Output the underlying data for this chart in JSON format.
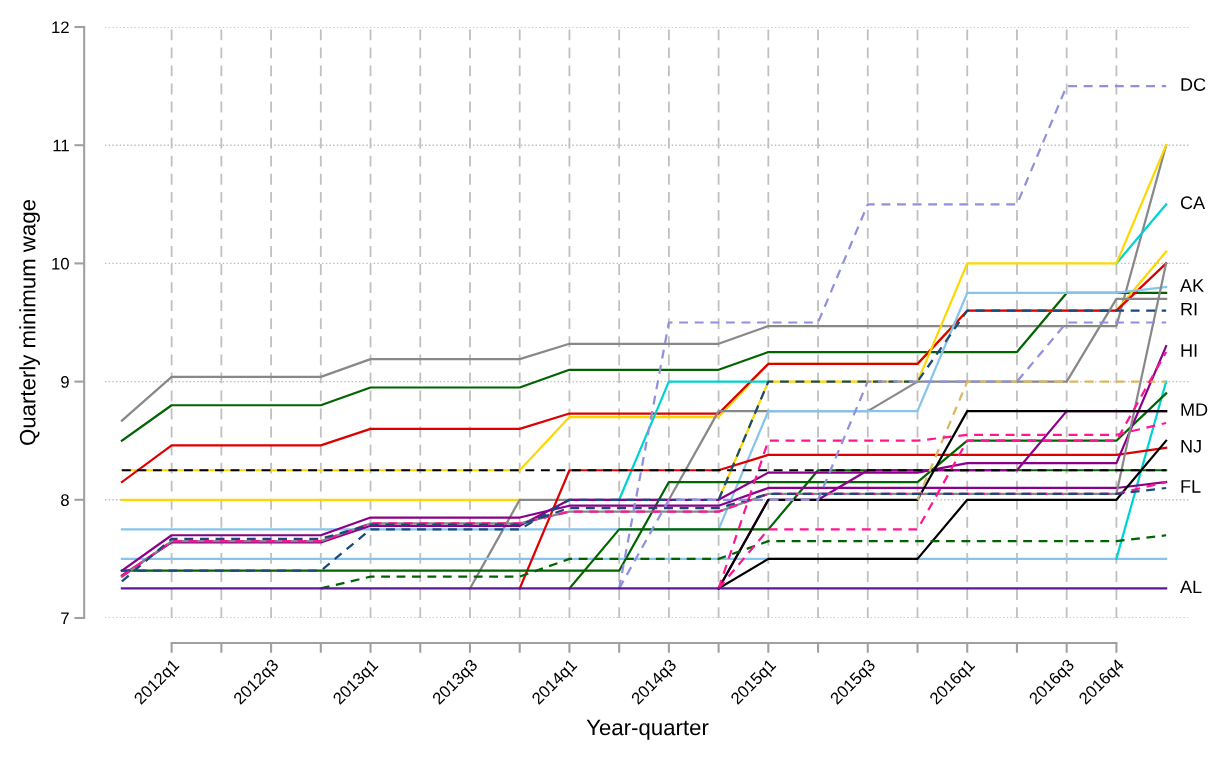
{
  "chart_data": {
    "type": "line",
    "xlabel": "Year-quarter",
    "ylabel": "Quarterly minimum wage",
    "categories": [
      null,
      "2012q1",
      null,
      "2012q3",
      null,
      "2013q1",
      null,
      "2013q3",
      null,
      "2014q1",
      null,
      "2014q3",
      null,
      "2015q1",
      null,
      "2015q3",
      null,
      "2016q1",
      null,
      "2016q3",
      "2016q4",
      null
    ],
    "ylim": [
      7,
      12
    ],
    "yticks": [
      7,
      8,
      9,
      10,
      11,
      12
    ],
    "grid": true,
    "series": [
      {
        "color": "#888888",
        "line_style": "solid",
        "values": [
          8.67,
          9.04,
          9.04,
          9.04,
          9.04,
          9.19,
          9.19,
          9.19,
          9.19,
          9.32,
          9.32,
          9.32,
          9.32,
          9.47,
          9.47,
          9.47,
          9.47,
          9.47,
          9.47,
          9.47,
          9.47,
          11.0
        ]
      },
      {
        "color": "#006400",
        "line_style": "solid",
        "values": [
          8.5,
          8.8,
          8.8,
          8.8,
          8.8,
          8.95,
          8.95,
          8.95,
          8.95,
          9.1,
          9.1,
          9.1,
          9.1,
          9.25,
          9.25,
          9.25,
          9.25,
          9.25,
          9.25,
          9.75,
          9.75,
          9.75
        ]
      },
      {
        "color": "#ffd700",
        "line_style": "solid",
        "values": [
          8.25,
          8.25,
          8.25,
          8.25,
          8.25,
          8.25,
          8.25,
          8.25,
          8.25,
          8.7,
          8.7,
          8.7,
          8.7,
          9.15,
          9.15,
          9.15,
          9.15,
          9.6,
          9.6,
          9.6,
          9.6,
          10.1
        ]
      },
      {
        "color": "#dd0000",
        "line_style": "solid",
        "values": [
          8.15,
          8.46,
          8.46,
          8.46,
          8.46,
          8.6,
          8.6,
          8.6,
          8.6,
          8.73,
          8.73,
          8.73,
          8.73,
          9.15,
          9.15,
          9.15,
          9.15,
          9.6,
          9.6,
          9.6,
          9.6,
          10.0
        ]
      },
      {
        "name": "CA",
        "color": "#00d2d2",
        "line_style": "solid",
        "values": [
          null,
          null,
          null,
          null,
          null,
          null,
          null,
          null,
          null,
          null,
          8,
          9,
          9,
          9,
          null,
          null,
          null,
          null,
          null,
          null,
          10,
          10.5
        ]
      },
      {
        "color": "#ffd700",
        "line_style": "solid",
        "values": [
          8,
          8,
          8,
          8,
          8,
          8,
          8,
          8,
          8,
          null,
          null,
          null,
          8,
          9,
          9,
          9,
          9,
          10,
          10,
          10,
          10,
          11
        ]
      },
      {
        "color": "#000000",
        "line_style": "dashed",
        "values": [
          8.25,
          8.25,
          8.25,
          8.25,
          8.25,
          8.25,
          8.25,
          8.25,
          8.25,
          8.25,
          8.25,
          8.25,
          8.25,
          8.25,
          8.25,
          8.25,
          8.25,
          8.25,
          8.25,
          8.25,
          8.25,
          8.25
        ]
      },
      {
        "color": "#d8b860",
        "line_style": "dashed",
        "values": [
          null,
          null,
          null,
          null,
          null,
          null,
          null,
          null,
          null,
          null,
          null,
          null,
          null,
          null,
          null,
          null,
          8,
          9,
          9,
          9,
          9,
          9
        ]
      },
      {
        "color": "#888888",
        "line_style": "solid",
        "values": [
          null,
          null,
          null,
          null,
          null,
          null,
          null,
          7.25,
          8,
          8,
          8,
          8,
          8.75,
          8.75,
          8.75,
          8.75,
          9,
          9,
          9,
          9,
          9.7,
          9.7
        ]
      },
      {
        "name": "RI",
        "color": "#1a4a7a",
        "line_style": "dashed",
        "values": [
          7.4,
          7.4,
          7.4,
          7.4,
          7.4,
          7.75,
          7.75,
          7.75,
          7.75,
          8,
          8,
          8,
          8,
          9,
          9,
          9,
          9,
          9.6,
          9.6,
          9.6,
          9.6,
          9.6
        ]
      },
      {
        "name": "AK",
        "color": "#87c4ec",
        "line_style": "solid",
        "values": [
          7.75,
          7.75,
          7.75,
          7.75,
          7.75,
          7.75,
          7.75,
          7.75,
          7.75,
          7.75,
          7.75,
          7.75,
          7.75,
          8.75,
          8.75,
          8.75,
          8.75,
          9.75,
          9.75,
          9.75,
          9.75,
          9.8
        ]
      },
      {
        "color": "#87c4ec",
        "line_style": "solid",
        "values": [
          7.5,
          7.5,
          7.5,
          7.5,
          7.5,
          7.5,
          7.5,
          7.5,
          7.5,
          7.5,
          7.5,
          7.5,
          7.5,
          7.5,
          7.5,
          7.5,
          7.5,
          7.5,
          7.5,
          7.5,
          7.5,
          7.5
        ]
      },
      {
        "color": "#00d2d2",
        "line_style": "solid",
        "values": [
          null,
          null,
          null,
          null,
          null,
          null,
          null,
          null,
          null,
          null,
          null,
          null,
          null,
          null,
          null,
          null,
          null,
          null,
          null,
          null,
          7.5,
          9
        ]
      },
      {
        "name": "NJ",
        "color": "#dd0000",
        "line_style": "solid",
        "values": [
          null,
          null,
          null,
          null,
          null,
          null,
          null,
          null,
          7.25,
          8.25,
          8.25,
          8.25,
          8.25,
          8.38,
          8.38,
          8.38,
          8.38,
          8.38,
          8.38,
          8.38,
          8.38,
          8.44
        ]
      },
      {
        "color": "#006400",
        "line_style": "solid",
        "values": [
          null,
          null,
          null,
          null,
          null,
          null,
          null,
          null,
          null,
          7.25,
          7.75,
          7.75,
          7.75,
          7.75,
          8.25,
          8.25,
          8.25,
          8.25,
          8.25,
          8.25,
          8.25,
          8.25
        ]
      },
      {
        "color": "#006400",
        "line_style": "solid",
        "values": [
          7.4,
          7.4,
          7.4,
          7.4,
          7.4,
          7.4,
          7.4,
          7.4,
          7.4,
          7.4,
          7.4,
          8.15,
          8.15,
          8.15,
          8.15,
          8.15,
          8.15,
          8.5,
          8.5,
          8.5,
          8.5,
          8.9
        ]
      },
      {
        "color": "#006400",
        "line_style": "dashed",
        "values": [
          null,
          null,
          null,
          null,
          7.25,
          7.35,
          7.35,
          7.35,
          7.35,
          7.5,
          7.5,
          7.5,
          7.5,
          7.65,
          7.65,
          7.65,
          7.65,
          7.65,
          7.65,
          7.65,
          7.65,
          7.7
        ]
      },
      {
        "color": "#8b008b",
        "line_style": "solid",
        "values": [
          7.36,
          7.64,
          7.64,
          7.64,
          7.64,
          7.78,
          7.78,
          7.78,
          7.78,
          8,
          8,
          8,
          8,
          8.23,
          8.23,
          8.23,
          8.23,
          8.31,
          8.31,
          8.31,
          8.31,
          9.3
        ]
      },
      {
        "color": "#8b008b",
        "line_style": "solid",
        "values": [
          7.4,
          7.7,
          7.7,
          7.7,
          7.7,
          7.85,
          7.85,
          7.85,
          7.85,
          7.95,
          7.95,
          7.95,
          7.95,
          8.1,
          8.1,
          8.1,
          8.1,
          8.1,
          8.1,
          8.1,
          8.1,
          8.15
        ]
      },
      {
        "name": "MD",
        "color": "#8b008b",
        "line_style": "solid",
        "values": [
          null,
          null,
          null,
          null,
          null,
          null,
          null,
          null,
          null,
          null,
          null,
          null,
          7.25,
          8,
          8,
          8.25,
          8.25,
          8.25,
          8.25,
          8.75,
          8.75,
          8.75
        ]
      },
      {
        "color": "#888888",
        "line_style": "solid",
        "values": [
          7.35,
          7.65,
          7.65,
          7.65,
          7.65,
          7.8,
          7.8,
          7.8,
          7.8,
          7.9,
          7.9,
          7.9,
          7.9,
          8.05,
          8.05,
          8.05,
          8.05,
          8.05,
          8.05,
          8.05,
          8.05,
          10
        ]
      },
      {
        "color": "#ff1493",
        "line_style": "dashed",
        "values": [
          7.35,
          7.65,
          7.65,
          7.65,
          7.65,
          7.8,
          7.8,
          7.8,
          7.8,
          7.9,
          7.9,
          7.9,
          7.9,
          8.05,
          8.05,
          8.05,
          8.05,
          8.05,
          8.05,
          8.05,
          8.05,
          8.15
        ]
      },
      {
        "name": "FL",
        "color": "#1a4a7a",
        "line_style": "dashed",
        "values": [
          7.31,
          7.67,
          7.67,
          7.67,
          7.67,
          7.79,
          7.79,
          7.79,
          7.79,
          7.93,
          7.93,
          7.93,
          7.93,
          8.05,
          8.05,
          8.05,
          8.05,
          8.05,
          8.05,
          8.05,
          8.05,
          8.1
        ]
      },
      {
        "name": "HI",
        "color": "#ff1493",
        "line_style": "dashed",
        "values": [
          null,
          null,
          null,
          null,
          null,
          null,
          null,
          null,
          null,
          null,
          null,
          null,
          7.25,
          7.75,
          7.75,
          7.75,
          7.75,
          8.5,
          8.5,
          8.5,
          8.5,
          9.25
        ]
      },
      {
        "color": "#ff1493",
        "line_style": "dashed",
        "values": [
          null,
          null,
          null,
          null,
          null,
          null,
          null,
          null,
          null,
          null,
          null,
          null,
          7.25,
          8.5,
          8.5,
          8.5,
          8.5,
          8.55,
          8.55,
          8.55,
          8.55,
          8.65
        ]
      },
      {
        "color": "#000000",
        "line_style": "solid",
        "values": [
          null,
          null,
          null,
          null,
          null,
          null,
          null,
          null,
          null,
          null,
          null,
          null,
          7.25,
          7.5,
          7.5,
          7.5,
          7.5,
          8,
          8,
          8,
          8,
          8.5
        ]
      },
      {
        "color": "#000000",
        "line_style": "solid",
        "values": [
          null,
          null,
          null,
          null,
          null,
          null,
          null,
          null,
          null,
          null,
          null,
          null,
          7.25,
          8,
          8,
          8,
          8,
          8.75,
          8.75,
          8.75,
          8.75,
          8.75
        ]
      },
      {
        "color": "#9090dd",
        "line_style": "dashed",
        "values": [
          null,
          null,
          null,
          null,
          null,
          null,
          null,
          null,
          null,
          null,
          7.25,
          8,
          8,
          8,
          8,
          9,
          9,
          9,
          9,
          9.5,
          9.5,
          9.5
        ]
      },
      {
        "name": "DC",
        "color": "#9090dd",
        "line_style": "dashed",
        "values": [
          null,
          null,
          null,
          null,
          null,
          null,
          null,
          null,
          null,
          null,
          7.25,
          9.5,
          9.5,
          9.5,
          9.5,
          10.5,
          10.5,
          10.5,
          10.5,
          11.5,
          11.5,
          11.5
        ]
      },
      {
        "name": "AL",
        "color": "#5b1a8f",
        "line_style": "solid",
        "values": [
          7.25,
          7.25,
          7.25,
          7.25,
          7.25,
          7.25,
          7.25,
          7.25,
          7.25,
          7.25,
          7.25,
          7.25,
          7.25,
          7.25,
          7.25,
          7.25,
          7.25,
          7.25,
          7.25,
          7.25,
          7.25,
          7.25
        ]
      }
    ]
  }
}
